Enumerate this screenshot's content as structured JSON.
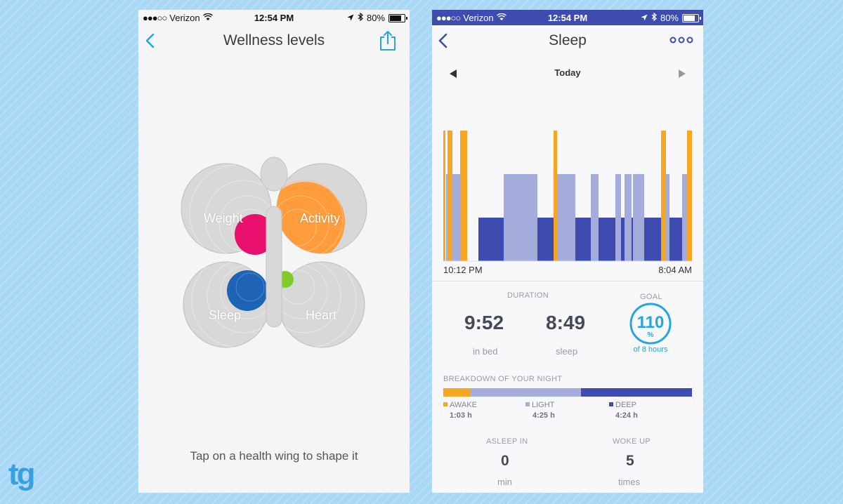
{
  "left_phone": {
    "status": {
      "signal": "●●●○○",
      "carrier": "Verizon",
      "time": "12:54 PM",
      "battery": "80%"
    },
    "title": "Wellness levels",
    "wings": {
      "weight": "Weight",
      "activity": "Activity",
      "sleep": "Sleep",
      "heart": "Heart"
    },
    "hint": "Tap on a health wing to shape it"
  },
  "right_phone": {
    "status": {
      "signal": "●●●○○",
      "carrier": "Verizon",
      "time": "12:54 PM",
      "battery": "80%"
    },
    "title": "Sleep",
    "date_label": "Today",
    "time_start": "10:12 PM",
    "time_end": "8:04 AM",
    "duration_caption": "DURATION",
    "in_bed": {
      "value": "9:52",
      "label": "in bed"
    },
    "sleep": {
      "value": "8:49",
      "label": "sleep"
    },
    "goal": {
      "caption": "GOAL",
      "value": "110",
      "unit": "%",
      "label": "of 8 hours",
      "fraction": 1.1
    },
    "breakdown_caption": "BREAKDOWN OF YOUR NIGHT",
    "breakdown": [
      {
        "name": "AWAKE",
        "value": "1:03 h",
        "minutes": 63,
        "color": "#f5a623"
      },
      {
        "name": "LIGHT",
        "value": "4:25 h",
        "minutes": 265,
        "color": "#a4acdc"
      },
      {
        "name": "DEEP",
        "value": "4:24 h",
        "minutes": 264,
        "color": "#3d4cae"
      }
    ],
    "asleep_in": {
      "caption": "ASLEEP IN",
      "value": "0",
      "unit": "min"
    },
    "woke_up": {
      "caption": "WOKE UP",
      "value": "5",
      "unit": "times"
    }
  },
  "colors": {
    "accent_blue": "#27a6db",
    "awake": "#f5a623",
    "light": "#a4acdc",
    "deep": "#3d4cae",
    "weight": "#e8106c",
    "activity": "#ff9c3b",
    "sleep_wing": "#1e63b5",
    "heart": "#7fcb2a"
  },
  "watermark": "tg"
}
